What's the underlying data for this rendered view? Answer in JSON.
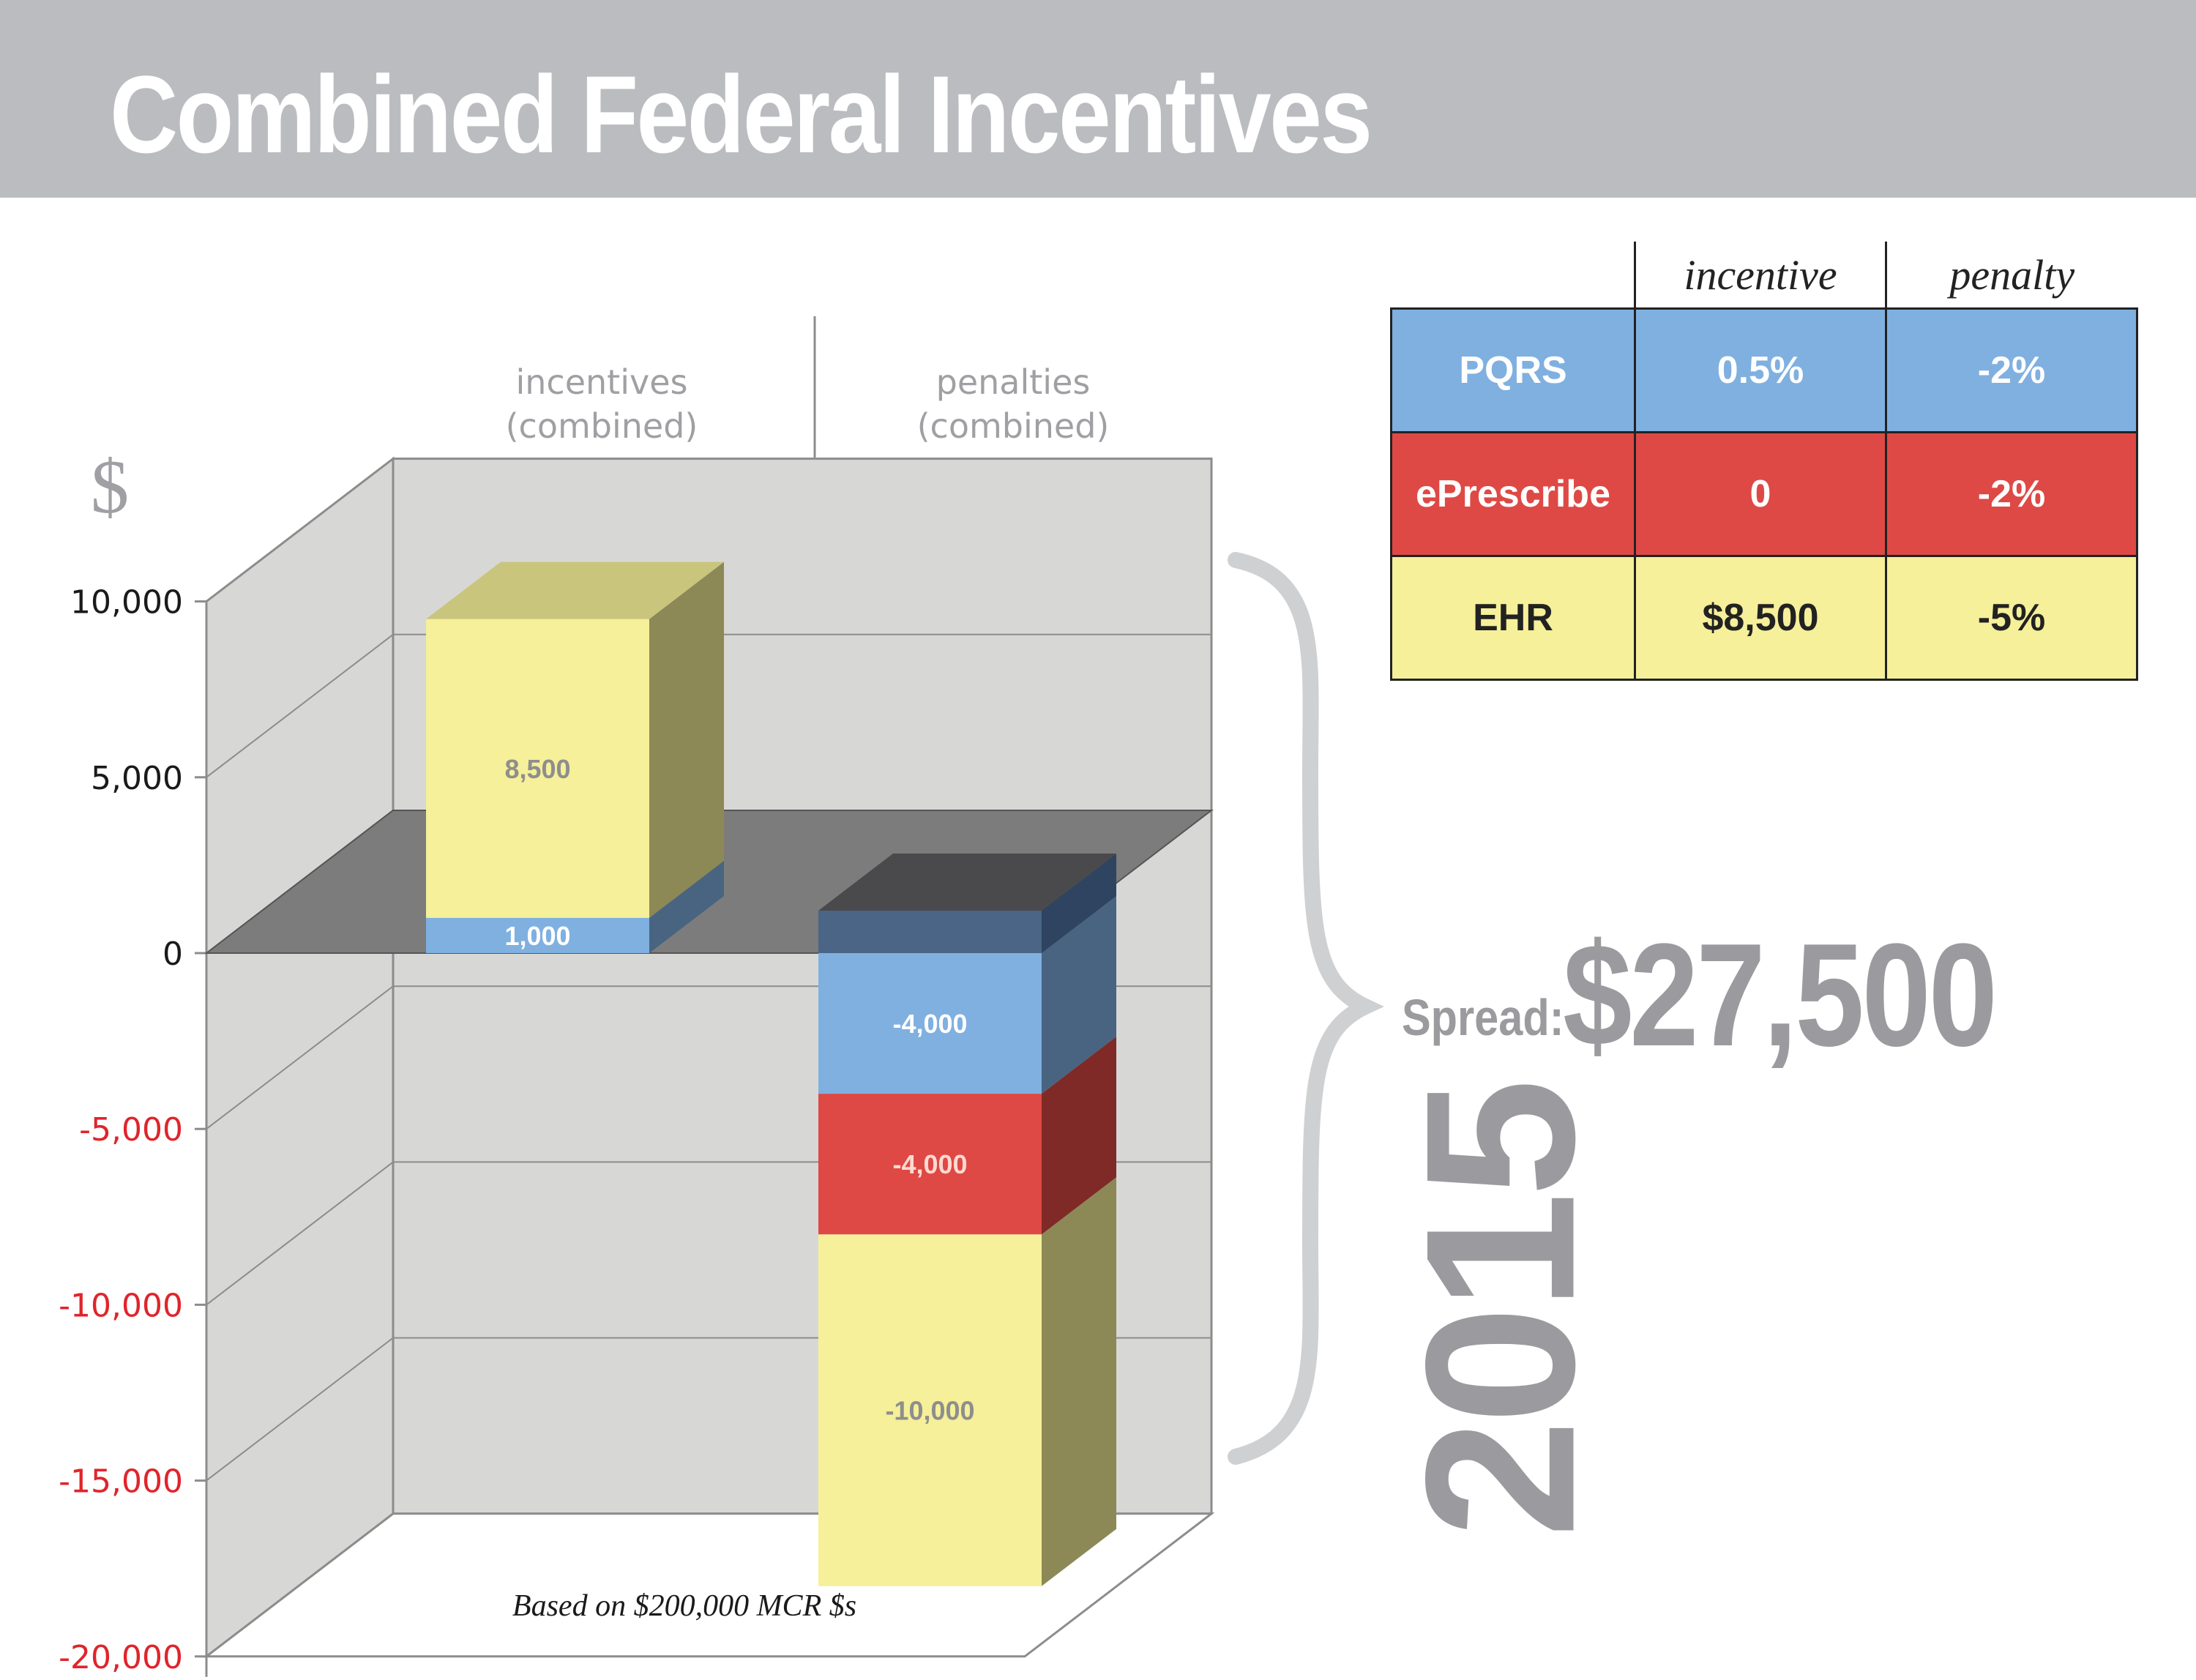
{
  "title": "Combined Federal Incentives",
  "chart_data": {
    "type": "bar",
    "stacked": true,
    "three_d": true,
    "currency_symbol": "$",
    "categories": [
      "incentives\n(combined)",
      "penalties\n(combined)"
    ],
    "category_lines": [
      [
        "incentives",
        "(combined)"
      ],
      [
        "penalties",
        "(combined)"
      ]
    ],
    "ylim": [
      -20000,
      10000
    ],
    "yticks": [
      10000,
      5000,
      0,
      -5000,
      -10000,
      -15000,
      -20000
    ],
    "ytick_labels": [
      "10,000",
      "5,000",
      "0",
      "-5,000",
      "-10,000",
      "-15,000",
      "-20,000"
    ],
    "negative_tick_color": "#e0242b",
    "grid": true,
    "series": [
      {
        "color": "#7fb0e0",
        "values": [
          1000,
          -4000
        ],
        "labels": [
          "1,000",
          "-4,000"
        ],
        "label_colors": [
          "#ffffff",
          "#ffffff"
        ]
      },
      {
        "color": "#de4945",
        "values": [
          0,
          -4000
        ],
        "labels": [
          "",
          "-4,000"
        ],
        "label_colors": [
          "#ffffff",
          "#ffd9d0"
        ]
      },
      {
        "color": "#f5f099",
        "values": [
          8500,
          -10000
        ],
        "labels": [
          "8,500",
          "-10,000"
        ],
        "label_colors": [
          "#8e8e8e",
          "#8e8e8e"
        ]
      }
    ],
    "footnote": "Based on $200,000 MCR $s"
  },
  "table": {
    "headers": [
      "",
      "incentive",
      "penalty"
    ],
    "rows": [
      {
        "name": "PQRS",
        "incentive": "0.5%",
        "penalty": "-2%",
        "bg": "#7fb0e0",
        "fg": "#ffffff"
      },
      {
        "name": "ePrescribe",
        "incentive": "0",
        "penalty": "-2%",
        "bg": "#de4945",
        "fg": "#ffffff"
      },
      {
        "name": "EHR",
        "incentive": "$8,500",
        "penalty": "-5%",
        "bg": "#f5f099",
        "fg": "#222222"
      }
    ]
  },
  "spread": {
    "label": "Spread:",
    "value": "$27,500"
  },
  "year": "2015"
}
